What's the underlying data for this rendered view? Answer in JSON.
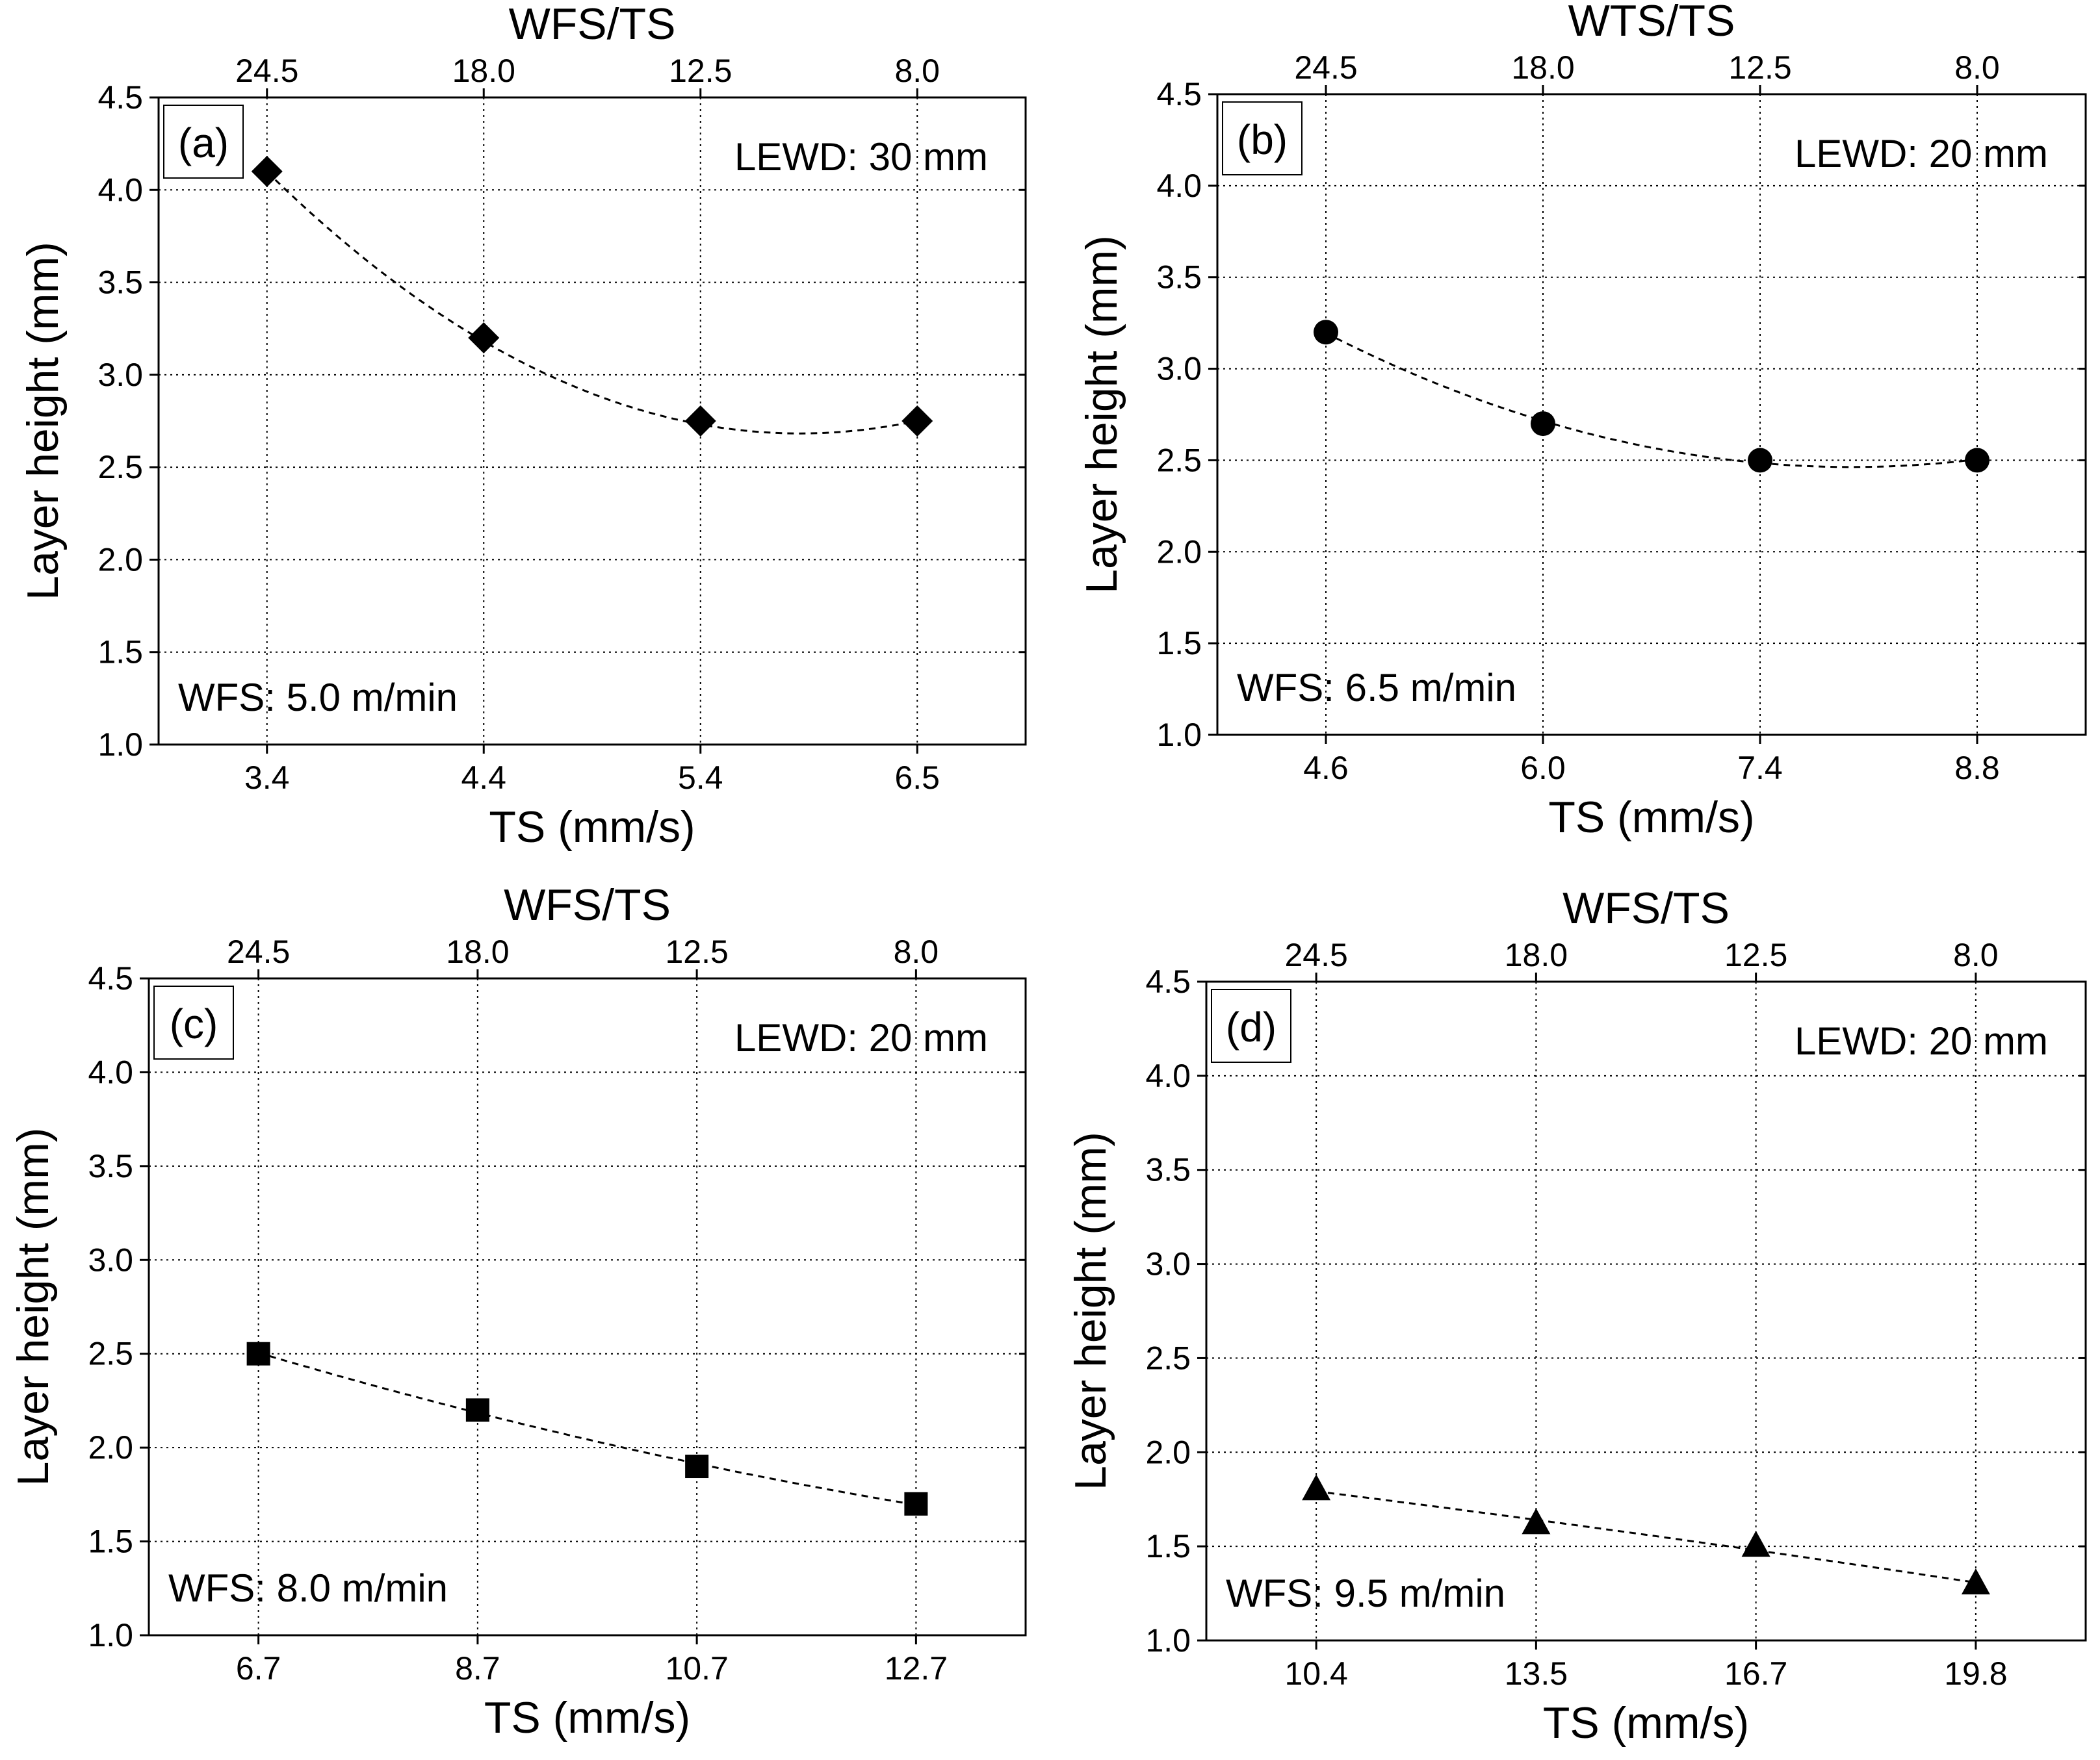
{
  "figure": {
    "panels": [
      "panel-a",
      "panel-b",
      "panel-c",
      "panel-d"
    ]
  },
  "chart_data": [
    {
      "id": "panel-a",
      "type": "scatter",
      "panel_label": "(a)",
      "annotation_top": "LEWD: 30 mm",
      "annotation_bottom": "WFS: 5.0 m/min",
      "xlabel": "TS (mm/s)",
      "ylabel": "Layer height (mm)",
      "top_xlabel": "WFS/TS",
      "categories": [
        "3.4",
        "4.4",
        "5.4",
        "6.5"
      ],
      "top_categories": [
        "24.5",
        "18.0",
        "12.5",
        "8.0"
      ],
      "values": [
        4.1,
        3.2,
        2.75,
        2.75
      ],
      "trend": "quadratic",
      "marker": "diamond",
      "ylim": [
        1.0,
        4.5
      ],
      "yticks": [
        "1.0",
        "1.5",
        "2.0",
        "2.5",
        "3.0",
        "3.5",
        "4.0",
        "4.5"
      ],
      "grid": true
    },
    {
      "id": "panel-b",
      "type": "scatter",
      "panel_label": "(b)",
      "annotation_top": "LEWD: 20 mm",
      "annotation_bottom": "WFS: 6.5 m/min",
      "xlabel": "TS (mm/s)",
      "ylabel": "Layer height (mm)",
      "top_xlabel": "WTS/TS",
      "categories": [
        "4.6",
        "6.0",
        "7.4",
        "8.8"
      ],
      "top_categories": [
        "24.5",
        "18.0",
        "12.5",
        "8.0"
      ],
      "values": [
        3.2,
        2.7,
        2.5,
        2.5
      ],
      "trend": "quadratic",
      "marker": "circle",
      "ylim": [
        1.0,
        4.5
      ],
      "yticks": [
        "1.0",
        "1.5",
        "2.0",
        "2.5",
        "3.0",
        "3.5",
        "4.0",
        "4.5"
      ],
      "grid": true
    },
    {
      "id": "panel-c",
      "type": "scatter",
      "panel_label": "(c)",
      "annotation_top": "LEWD: 20 mm",
      "annotation_bottom": "WFS: 8.0 m/min",
      "xlabel": "TS (mm/s)",
      "ylabel": "Layer height (mm)",
      "top_xlabel": "WFS/TS",
      "categories": [
        "6.7",
        "8.7",
        "10.7",
        "12.7"
      ],
      "top_categories": [
        "24.5",
        "18.0",
        "12.5",
        "8.0"
      ],
      "values": [
        2.5,
        2.2,
        1.9,
        1.7
      ],
      "trend": "quadratic",
      "marker": "square",
      "ylim": [
        1.0,
        4.5
      ],
      "yticks": [
        "1.0",
        "1.5",
        "2.0",
        "2.5",
        "3.0",
        "3.5",
        "4.0",
        "4.5"
      ],
      "grid": true
    },
    {
      "id": "panel-d",
      "type": "scatter",
      "panel_label": "(d)",
      "annotation_top": "LEWD: 20 mm",
      "annotation_bottom": "WFS: 9.5 m/min",
      "xlabel": "TS (mm/s)",
      "ylabel": "Layer height (mm)",
      "top_xlabel": "WFS/TS",
      "categories": [
        "10.4",
        "13.5",
        "16.7",
        "19.8"
      ],
      "top_categories": [
        "24.5",
        "18.0",
        "12.5",
        "8.0"
      ],
      "values": [
        1.8,
        1.62,
        1.5,
        1.3
      ],
      "trend": "quadratic",
      "marker": "triangle",
      "ylim": [
        1.0,
        4.5
      ],
      "yticks": [
        "1.0",
        "1.5",
        "2.0",
        "2.5",
        "3.0",
        "3.5",
        "4.0",
        "4.5"
      ],
      "grid": true
    }
  ]
}
